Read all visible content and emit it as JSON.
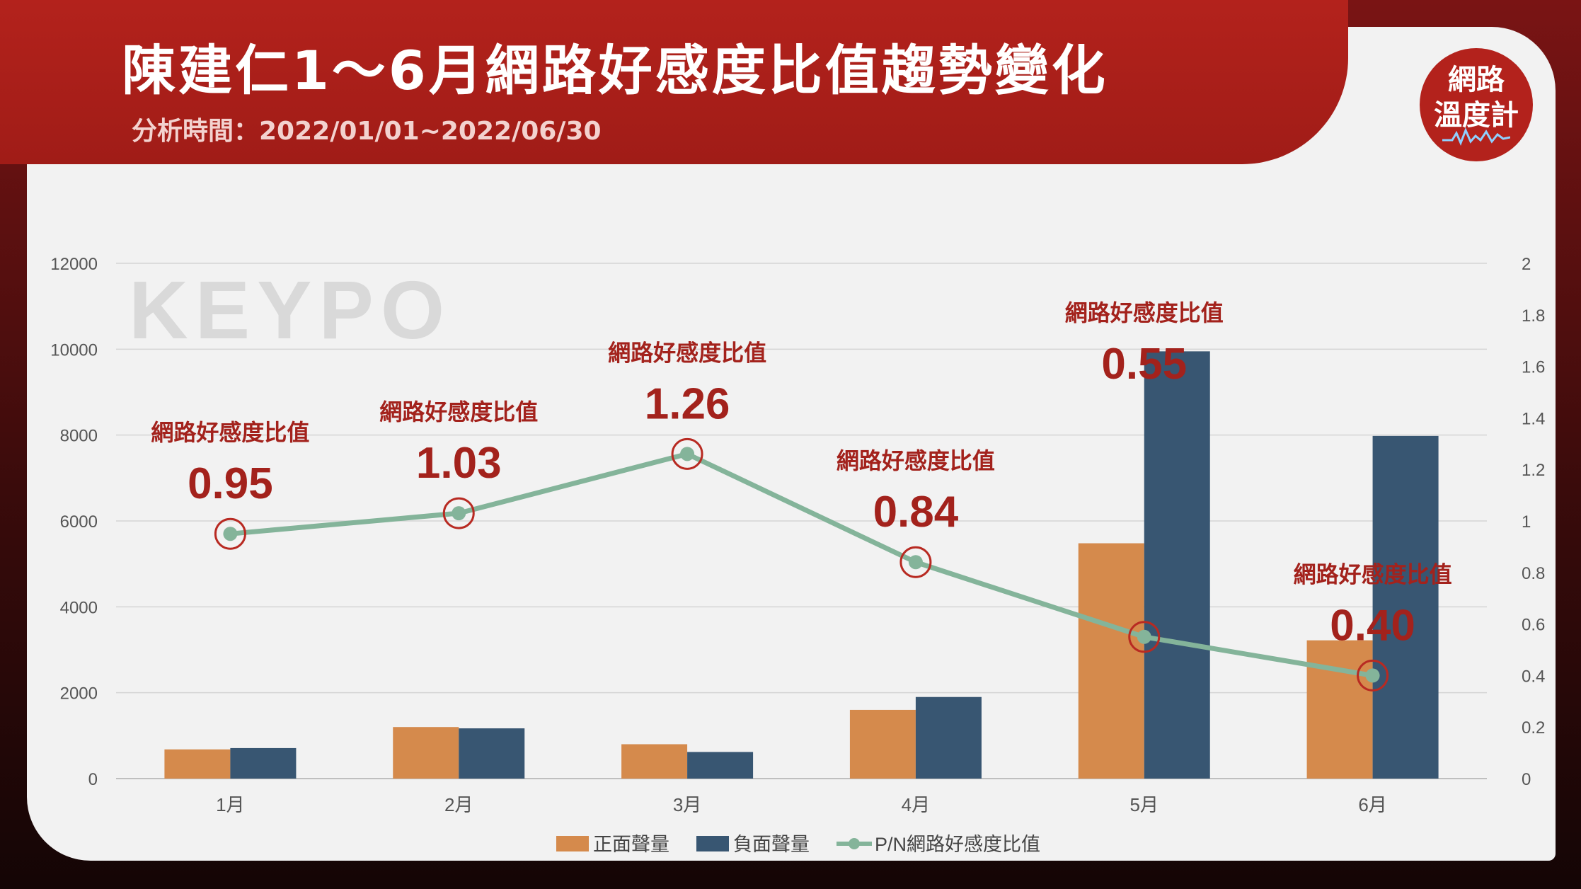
{
  "header": {
    "title": "陳建仁1～6月網路好感度比值趨勢變化",
    "subtitle": "分析時間：2022/01/01~2022/06/30"
  },
  "badge": {
    "line1": "網路",
    "line2": "溫度計"
  },
  "watermark": "KEYPO",
  "colors": {
    "header_red": "#a01c17",
    "positive": "#d58a4c",
    "negative": "#385672",
    "ratio_line": "#84b49a",
    "annotation": "#a3221c"
  },
  "chart_data": {
    "type": "bar",
    "categories": [
      "1月",
      "2月",
      "3月",
      "4月",
      "5月",
      "6月"
    ],
    "series": [
      {
        "name": "正面聲量",
        "type": "bar",
        "axis": "left",
        "values": [
          680,
          1200,
          800,
          1600,
          5480,
          3220
        ]
      },
      {
        "name": "負面聲量",
        "type": "bar",
        "axis": "left",
        "values": [
          710,
          1170,
          620,
          1900,
          9950,
          7980
        ]
      },
      {
        "name": "P/N網路好感度比值",
        "type": "line",
        "axis": "right",
        "values": [
          0.95,
          1.03,
          1.26,
          0.84,
          0.55,
          0.4
        ]
      }
    ],
    "annotations": [
      {
        "label": "網路好感度比值",
        "value": "0.95"
      },
      {
        "label": "網路好感度比值",
        "value": "1.03"
      },
      {
        "label": "網路好感度比值",
        "value": "1.26"
      },
      {
        "label": "網路好感度比值",
        "value": "0.84"
      },
      {
        "label": "網路好感度比值",
        "value": "0.55"
      },
      {
        "label": "網路好感度比值",
        "value": "0.40"
      }
    ],
    "y_left": {
      "ticks": [
        "0",
        "2000",
        "4000",
        "6000",
        "8000",
        "10000",
        "12000"
      ],
      "ylim": [
        0,
        12000
      ]
    },
    "y_right": {
      "ticks": [
        "0",
        "0.2",
        "0.4",
        "0.6",
        "0.8",
        "1",
        "1.2",
        "1.4",
        "1.6",
        "1.8",
        "2"
      ],
      "ylim": [
        0,
        2
      ]
    },
    "grid": true,
    "legend_position": "bottom"
  }
}
